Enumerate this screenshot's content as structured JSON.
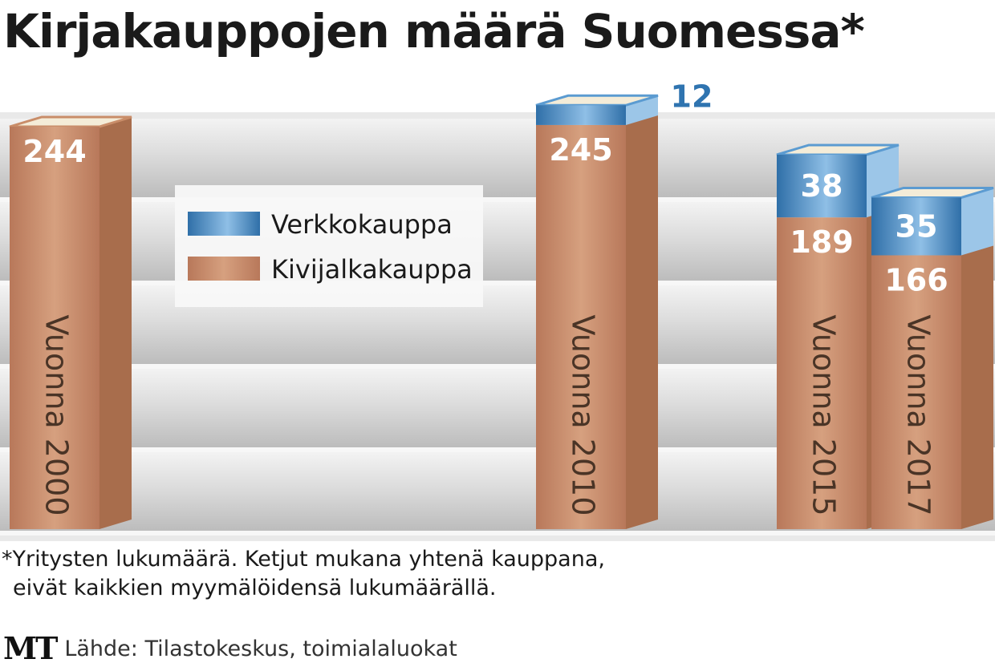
{
  "colors": {
    "online": "#5b9bd1",
    "online_dark": "#2f6fa8",
    "physical": "#c98d69",
    "physical_dark": "#a86d4c",
    "online_label": "#2f74b0",
    "label_white": "#ffffff",
    "spine_text": "#4a3426"
  },
  "chart_data": {
    "type": "bar",
    "title": "Kirjakauppojen määrä Suomessa*",
    "stacked": true,
    "categories": [
      "Vuonna 2000",
      "Vuonna 2010",
      "Vuonna 2015",
      "Vuonna 2017"
    ],
    "series": [
      {
        "name": "Kivijalkakauppa",
        "values": [
          244,
          245,
          189,
          166
        ],
        "color": "#c98d69"
      },
      {
        "name": "Verkkokauppa",
        "values": [
          0,
          12,
          38,
          35
        ],
        "color": "#5b9bd1"
      }
    ],
    "legend": {
      "placement": "center-left",
      "items": [
        {
          "label": "Verkkokauppa",
          "color": "#5b9bd1"
        },
        {
          "label": "Kivijalkakauppa",
          "color": "#c98d69"
        }
      ]
    },
    "grid": false
  },
  "footnote": {
    "line1": "*Yritysten lukumäärä. Ketjut mukana yhtenä kauppana,",
    "line2": "eivät kaikkien myymälöidensä lukumäärällä."
  },
  "source": {
    "logo": "MT",
    "text": "Lähde: Tilastokeskus, toimialaluokat"
  }
}
